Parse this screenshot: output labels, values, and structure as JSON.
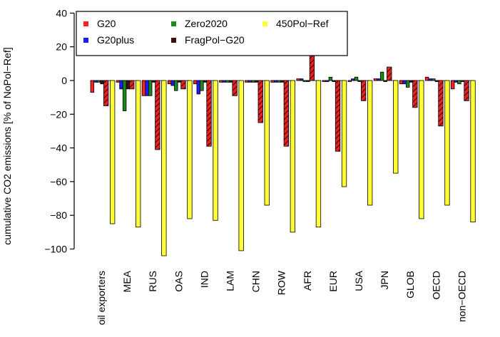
{
  "chart_data": {
    "type": "bar",
    "ylabel": "cumulative CO2 emissions [% of NoPol−Ref]",
    "ylim": [
      -100,
      40
    ],
    "yticks": [
      40,
      20,
      0,
      -20,
      -40,
      -60,
      -80,
      -100
    ],
    "categories": [
      "oil exporters",
      "MEA",
      "RUS",
      "OAS",
      "IND",
      "LAM",
      "CHN",
      "ROW",
      "AFR",
      "EUR",
      "USA",
      "JPN",
      "GLOB",
      "OECD",
      "non−OECD"
    ],
    "legend_placement": "top-left",
    "series": [
      {
        "name": "G20",
        "color": "#ff2020",
        "values": [
          -7,
          -1,
          -9,
          -2,
          -2,
          -1,
          -1,
          -1,
          1,
          0,
          0,
          1,
          -2,
          2,
          -5
        ]
      },
      {
        "name": "G20plus",
        "color": "#1a1aff",
        "values": [
          -1,
          -5,
          -9,
          -3,
          -8,
          -1,
          -1,
          -1,
          1,
          0,
          1,
          1,
          -2,
          1,
          -1
        ]
      },
      {
        "name": "Zero2020",
        "color": "#1a8a1a",
        "values": [
          -1,
          -18,
          -9,
          -6,
          -6,
          -1,
          -1,
          -1,
          0,
          2,
          2,
          5,
          -4,
          1,
          -2
        ]
      },
      {
        "name": "FragPol−G20",
        "color": "#3a1010",
        "values": [
          -2,
          -5,
          -1,
          -1,
          -1,
          -1,
          -1,
          -1,
          0,
          0,
          0,
          0,
          -1,
          0,
          0
        ]
      },
      {
        "name": "450Pol−Ref",
        "color": "#ffff33",
        "values": [
          -85,
          -87,
          -104,
          -82,
          -83,
          -101,
          -74,
          -90,
          -87,
          -63,
          -74,
          -55,
          -82,
          -74,
          -84
        ]
      }
    ],
    "hatched_series": {
      "name": "FragPol−G20",
      "color": "#ff2020",
      "values": [
        -15,
        -5,
        -41,
        -5,
        -39,
        -9,
        -25,
        -39,
        16,
        -42,
        -12,
        8,
        -16,
        -27,
        -12
      ]
    }
  }
}
